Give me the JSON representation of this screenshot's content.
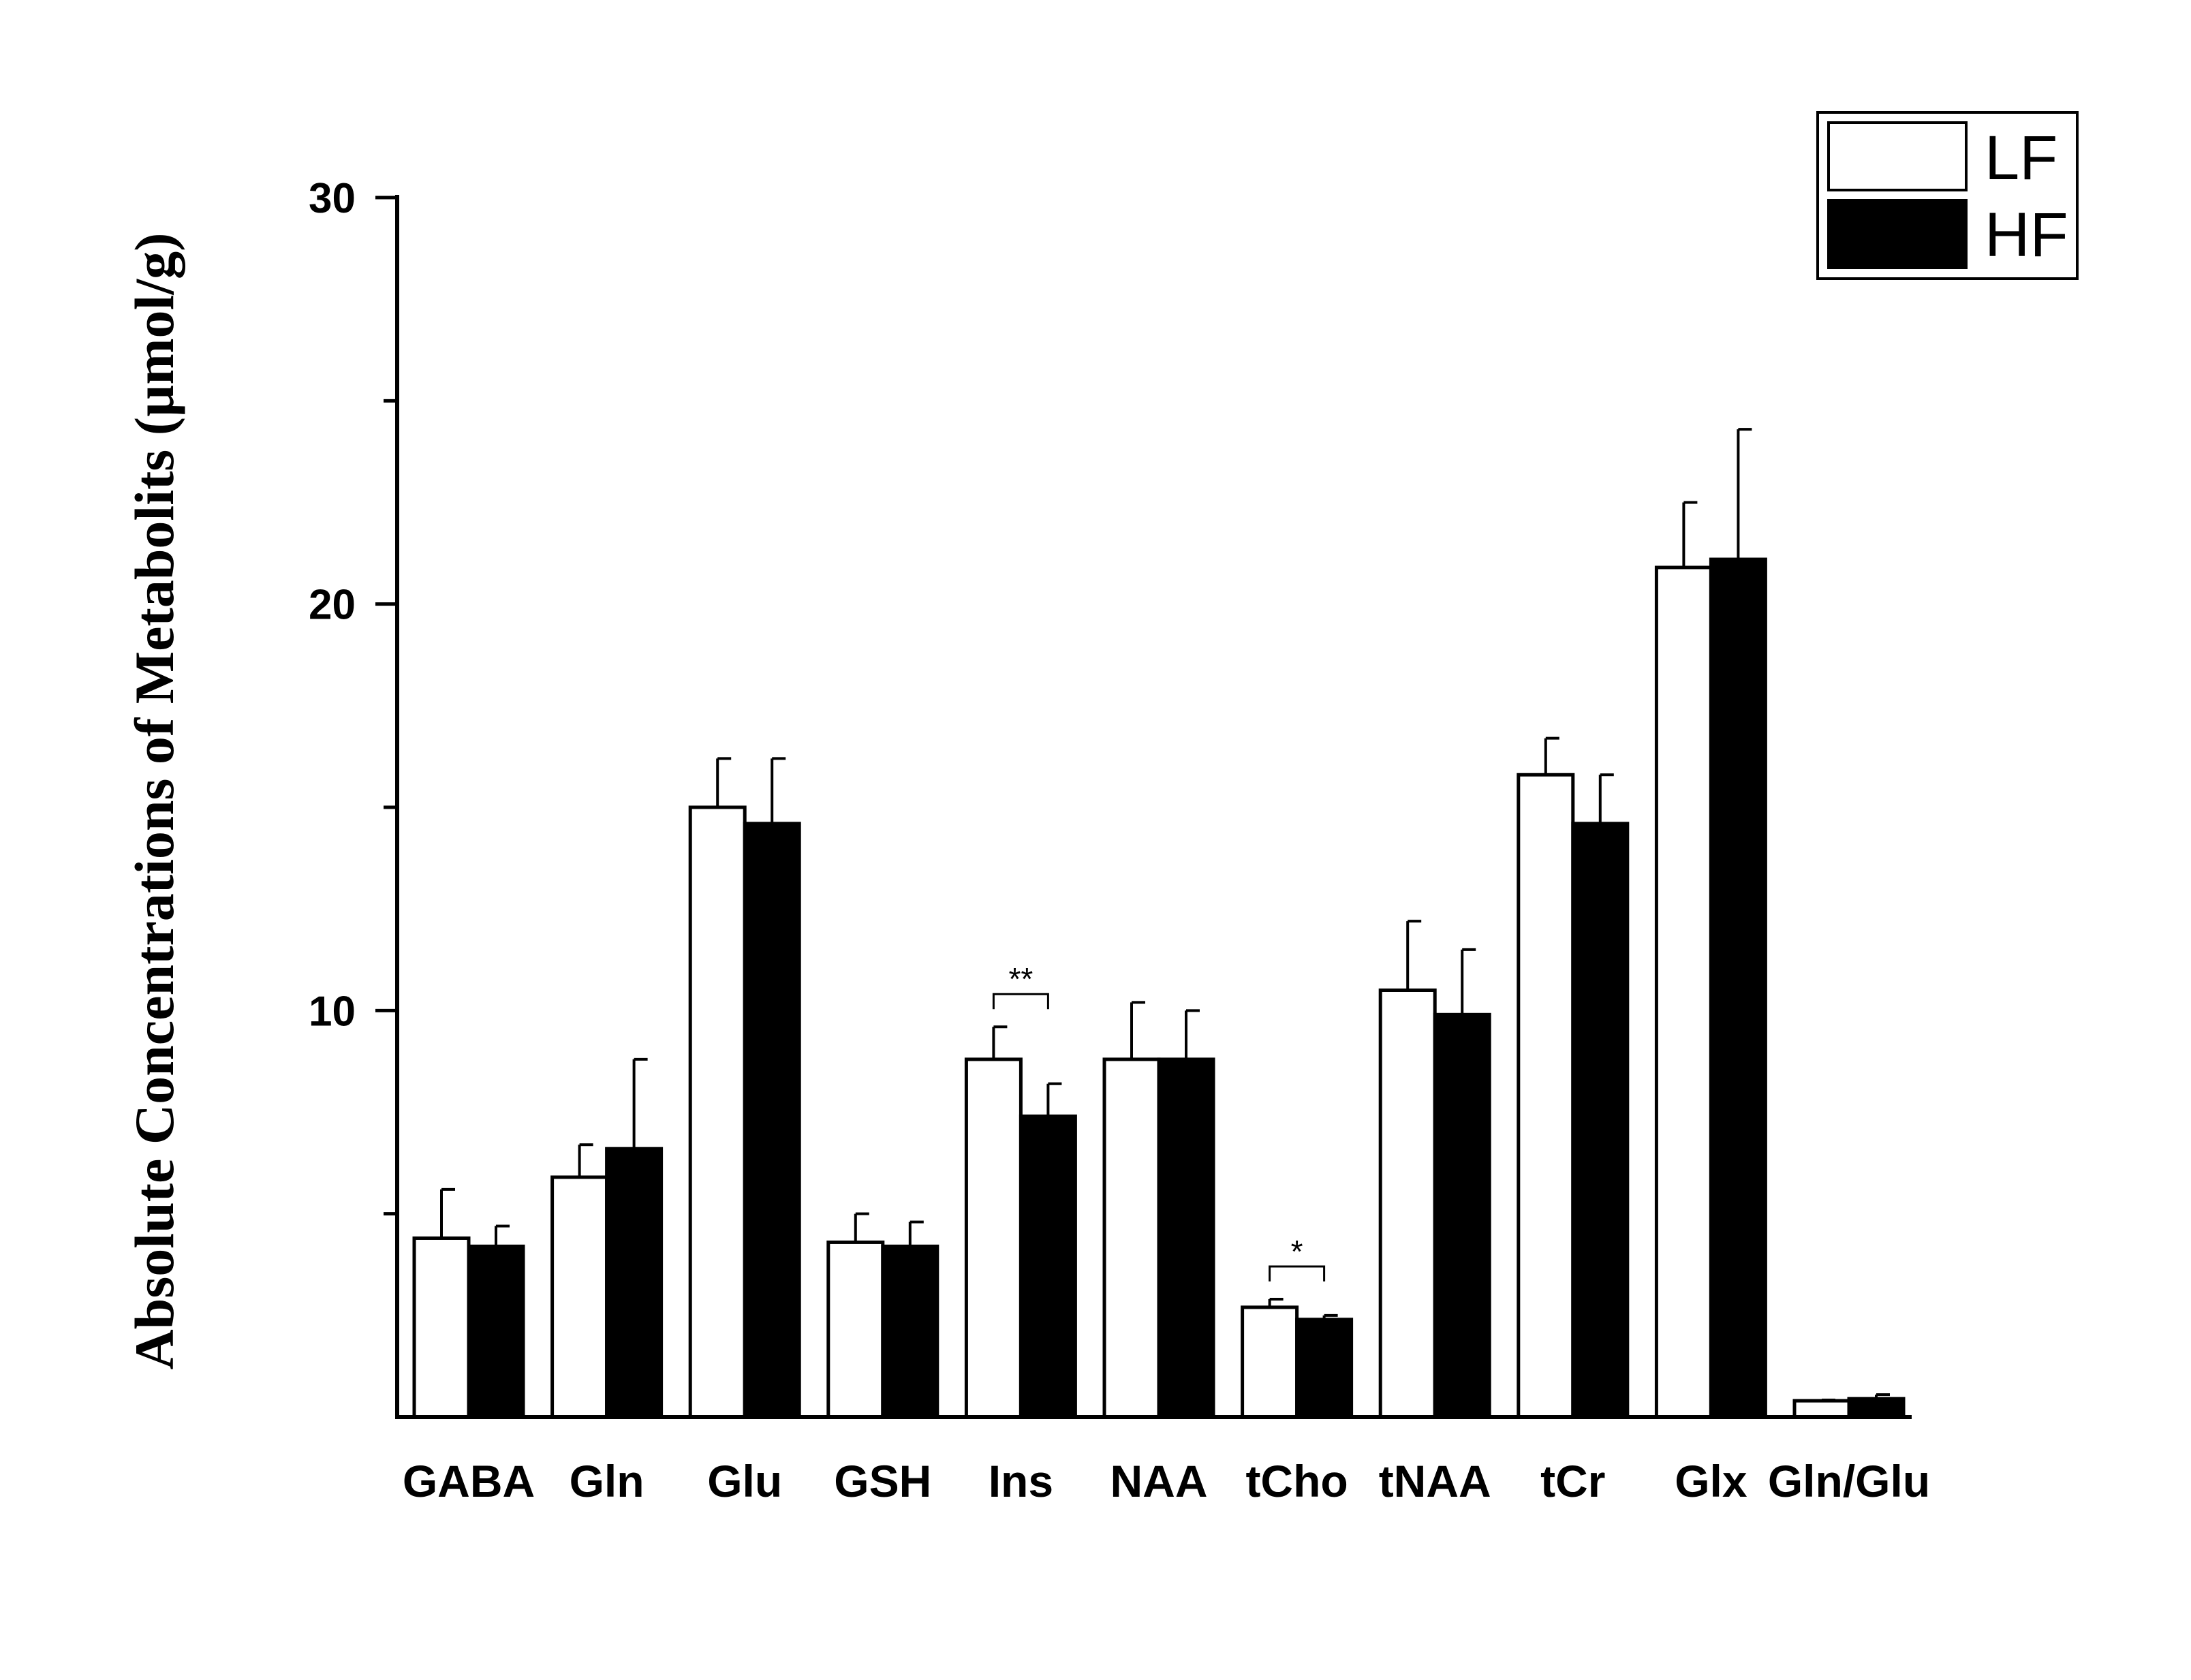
{
  "chart_data": {
    "type": "bar",
    "title": "",
    "xlabel": "",
    "ylabel": "Absolute Concentrations of Metabolits (µmol/g)",
    "ylim": [
      0,
      30
    ],
    "yticks": [
      10,
      20,
      30
    ],
    "categories": [
      "GABA",
      "Gln",
      "Glu",
      "GSH",
      "Ins",
      "NAA",
      "tCho",
      "tNAA",
      "tCr",
      "Glx",
      "Gln/Glu"
    ],
    "series": [
      {
        "name": "LF",
        "fill": "#ffffff",
        "values": [
          4.4,
          5.9,
          15.0,
          4.3,
          8.8,
          8.8,
          2.7,
          10.5,
          15.8,
          20.9,
          0.4
        ],
        "errors": [
          1.2,
          0.8,
          1.2,
          0.7,
          0.8,
          1.4,
          0.2,
          1.7,
          0.9,
          1.6,
          0.02
        ]
      },
      {
        "name": "HF",
        "fill": "#000000",
        "values": [
          4.2,
          6.6,
          14.6,
          4.2,
          7.4,
          8.8,
          2.4,
          9.9,
          14.6,
          21.1,
          0.45
        ],
        "errors": [
          0.5,
          2.2,
          1.6,
          0.6,
          0.8,
          1.2,
          0.1,
          1.6,
          1.2,
          3.2,
          0.1
        ]
      }
    ],
    "significance": [
      {
        "category": "Ins",
        "label": "**"
      },
      {
        "category": "tCho",
        "label": "*"
      }
    ],
    "legend": {
      "position": "top-right",
      "entries": [
        "LF",
        "HF"
      ]
    },
    "grid": false
  }
}
